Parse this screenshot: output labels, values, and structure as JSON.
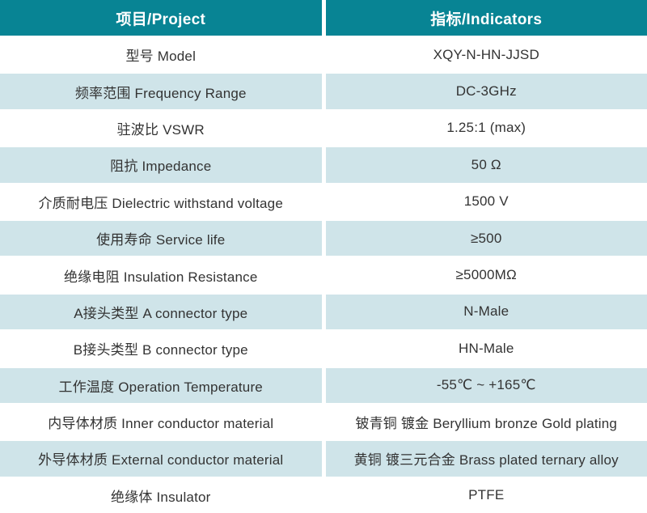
{
  "table": {
    "headers": {
      "project": "项目/Project",
      "indicators": "指标/Indicators"
    },
    "rows": [
      {
        "project": "型号 Model",
        "indicator": "XQY-N-HN-JJSD"
      },
      {
        "project": "频率范围 Frequency Range",
        "indicator": "DC-3GHz"
      },
      {
        "project": "驻波比 VSWR",
        "indicator": "1.25:1 (max)"
      },
      {
        "project": "阻抗 Impedance",
        "indicator": "50 Ω"
      },
      {
        "project": "介质耐电压 Dielectric withstand voltage",
        "indicator": "1500 V"
      },
      {
        "project": "使用寿命 Service life",
        "indicator": "≥500"
      },
      {
        "project": "绝缘电阻 Insulation Resistance",
        "indicator": "≥5000MΩ"
      },
      {
        "project": "A接头类型 A connector type",
        "indicator": "N-Male"
      },
      {
        "project": "B接头类型 B connector type",
        "indicator": "HN-Male"
      },
      {
        "project": "工作温度 Operation Temperature",
        "indicator": "-55℃ ~ +165℃"
      },
      {
        "project": "内导体材质 Inner conductor material",
        "indicator": "铍青铜 镀金 Beryllium bronze Gold plating"
      },
      {
        "project": "外导体材质 External conductor material",
        "indicator": "黄铜 镀三元合金 Brass plated ternary alloy"
      },
      {
        "project": "绝缘体 Insulator",
        "indicator": "PTFE"
      }
    ]
  },
  "colors": {
    "header_bg": "#088494",
    "header_text": "#ffffff",
    "stripe_bg": "#cfe4e9",
    "row_bg": "#ffffff",
    "cell_text": "#333333"
  }
}
